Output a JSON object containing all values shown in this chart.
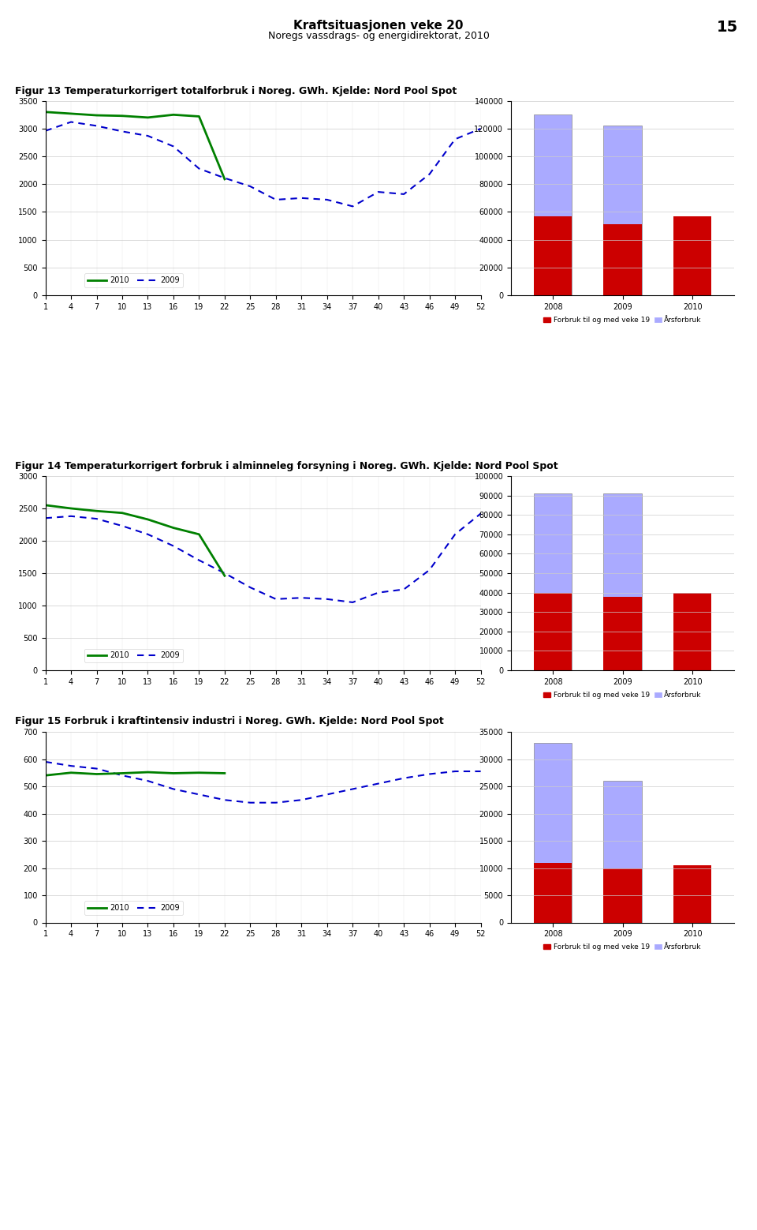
{
  "page_title": "Kraftsituasjonen veke 20",
  "page_subtitle": "Noregs vassdrags- og energidirektorat, 2010",
  "page_number": "15",
  "fig13_title": "Figur 13 Temperaturkorrigert totalforbruk i Noreg. GWh. Kjelde: Nord Pool Spot",
  "fig14_title": "Figur 14 Temperaturkorrigert forbruk i alminneleg forsyning i Noreg. GWh. Kjelde: Nord Pool Spot",
  "fig15_title": "Figur 15 Forbruk i kraftintensiv industri i Noreg. GWh. Kjelde: Nord Pool Spot",
  "weeks_2009": [
    1,
    4,
    7,
    10,
    13,
    16,
    19,
    22,
    25,
    28,
    31,
    34,
    37,
    40,
    43,
    46,
    49,
    52
  ],
  "weeks_2010": [
    1,
    4,
    7,
    10,
    13,
    16,
    19,
    22
  ],
  "fig13_2010": [
    3300,
    3270,
    3240,
    3230,
    3200,
    3250,
    3220,
    2090
  ],
  "fig13_2009": [
    2960,
    3120,
    3050,
    2950,
    2870,
    2680,
    2280,
    2110,
    1960,
    1720,
    1750,
    1720,
    1600,
    1860,
    1820,
    2180,
    2810,
    3000
  ],
  "fig13_ylim": [
    0,
    3500
  ],
  "fig13_yticks": [
    0,
    500,
    1000,
    1500,
    2000,
    2500,
    3000,
    3500
  ],
  "fig13_bar_years": [
    "2008",
    "2009",
    "2010"
  ],
  "fig13_bar_consumed": [
    57000,
    51000,
    57000
  ],
  "fig13_bar_annual": [
    130000,
    122000,
    0
  ],
  "fig13_bar_ylim": [
    0,
    140000
  ],
  "fig13_bar_yticks": [
    0,
    20000,
    40000,
    60000,
    80000,
    100000,
    120000,
    140000
  ],
  "fig14_2010": [
    2550,
    2500,
    2460,
    2430,
    2330,
    2200,
    2100,
    1460
  ],
  "fig14_2009": [
    2350,
    2380,
    2340,
    2230,
    2100,
    1920,
    1700,
    1500,
    1280,
    1100,
    1120,
    1100,
    1050,
    1200,
    1250,
    1550,
    2100,
    2420
  ],
  "fig14_ylim": [
    0,
    3000
  ],
  "fig14_yticks": [
    0,
    500,
    1000,
    1500,
    2000,
    2500,
    3000
  ],
  "fig14_bar_years": [
    "2008",
    "2009",
    "2010"
  ],
  "fig14_bar_consumed": [
    40000,
    38000,
    40000
  ],
  "fig14_bar_annual": [
    91000,
    91000,
    0
  ],
  "fig14_bar_ylim": [
    0,
    100000
  ],
  "fig14_bar_yticks": [
    0,
    10000,
    20000,
    30000,
    40000,
    50000,
    60000,
    70000,
    80000,
    90000,
    100000
  ],
  "fig15_2010": [
    540,
    550,
    545,
    548,
    552,
    548,
    550,
    548
  ],
  "fig15_2009": [
    590,
    575,
    565,
    540,
    520,
    490,
    470,
    450,
    440,
    440,
    450,
    470,
    490,
    510,
    530,
    545,
    555,
    555
  ],
  "fig15_ylim": [
    0,
    700
  ],
  "fig15_yticks": [
    0,
    100,
    200,
    300,
    400,
    500,
    600,
    700
  ],
  "fig15_bar_years": [
    "2008",
    "2009",
    "2010"
  ],
  "fig15_bar_consumed": [
    11000,
    10000,
    10500
  ],
  "fig15_bar_annual": [
    33000,
    26000,
    0
  ],
  "fig15_bar_ylim": [
    0,
    35000
  ],
  "fig15_bar_yticks": [
    0,
    5000,
    10000,
    15000,
    20000,
    25000,
    30000,
    35000
  ],
  "color_2010": "#008000",
  "color_2009": "#0000CC",
  "color_bar_red": "#CC0000",
  "color_bar_blue_light": "#AAAAFF",
  "legend_label_consumed": "Forbruk til og med veke 19",
  "legend_label_annual": "Årsforbruk",
  "background_color": "#FFFFFF"
}
